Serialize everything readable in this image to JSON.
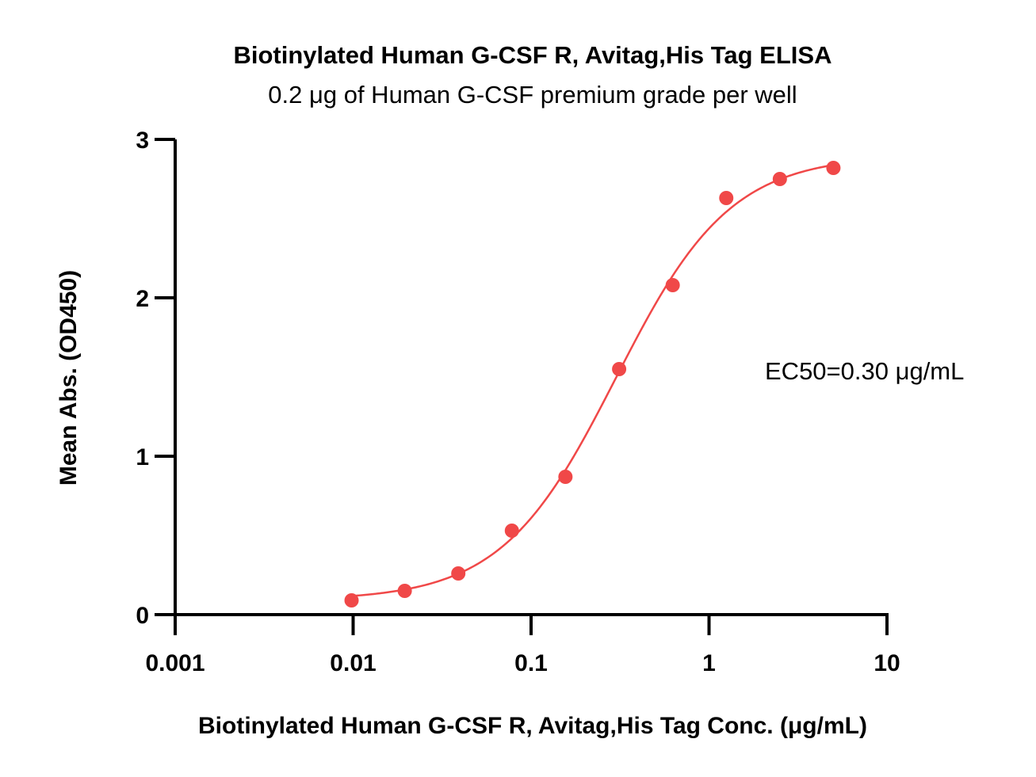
{
  "chart_data": {
    "type": "scatter",
    "title": "Biotinylated Human G-CSF R, Avitag,His Tag ELISA",
    "subtitle": "0.2 μg of Human G-CSF premium grade per well",
    "xlabel": "Biotinylated Human G-CSF R, Avitag,His Tag Conc. (μg/mL)",
    "ylabel": "Mean Abs. (OD450)",
    "xscale": "log",
    "xlim": [
      0.001,
      10
    ],
    "ylim": [
      0,
      3
    ],
    "xticks": [
      "0.001",
      "0.01",
      "0.1",
      "1",
      "10"
    ],
    "yticks": [
      "0",
      "1",
      "2",
      "3"
    ],
    "annotation": "EC50=0.30 μg/mL",
    "color": "#f04848",
    "grid": false,
    "series": [
      {
        "x": [
          0.0098,
          0.0195,
          0.039,
          0.078,
          0.156,
          0.3125,
          0.625,
          1.25,
          2.5,
          5.0
        ],
        "y": [
          0.09,
          0.15,
          0.26,
          0.53,
          0.87,
          1.55,
          2.08,
          2.63,
          2.75,
          2.82
        ]
      }
    ],
    "fit_curve": {
      "model": "4PL",
      "bottom": 0.09,
      "top": 2.9,
      "ec50": 0.3,
      "hill": 1.35
    }
  }
}
